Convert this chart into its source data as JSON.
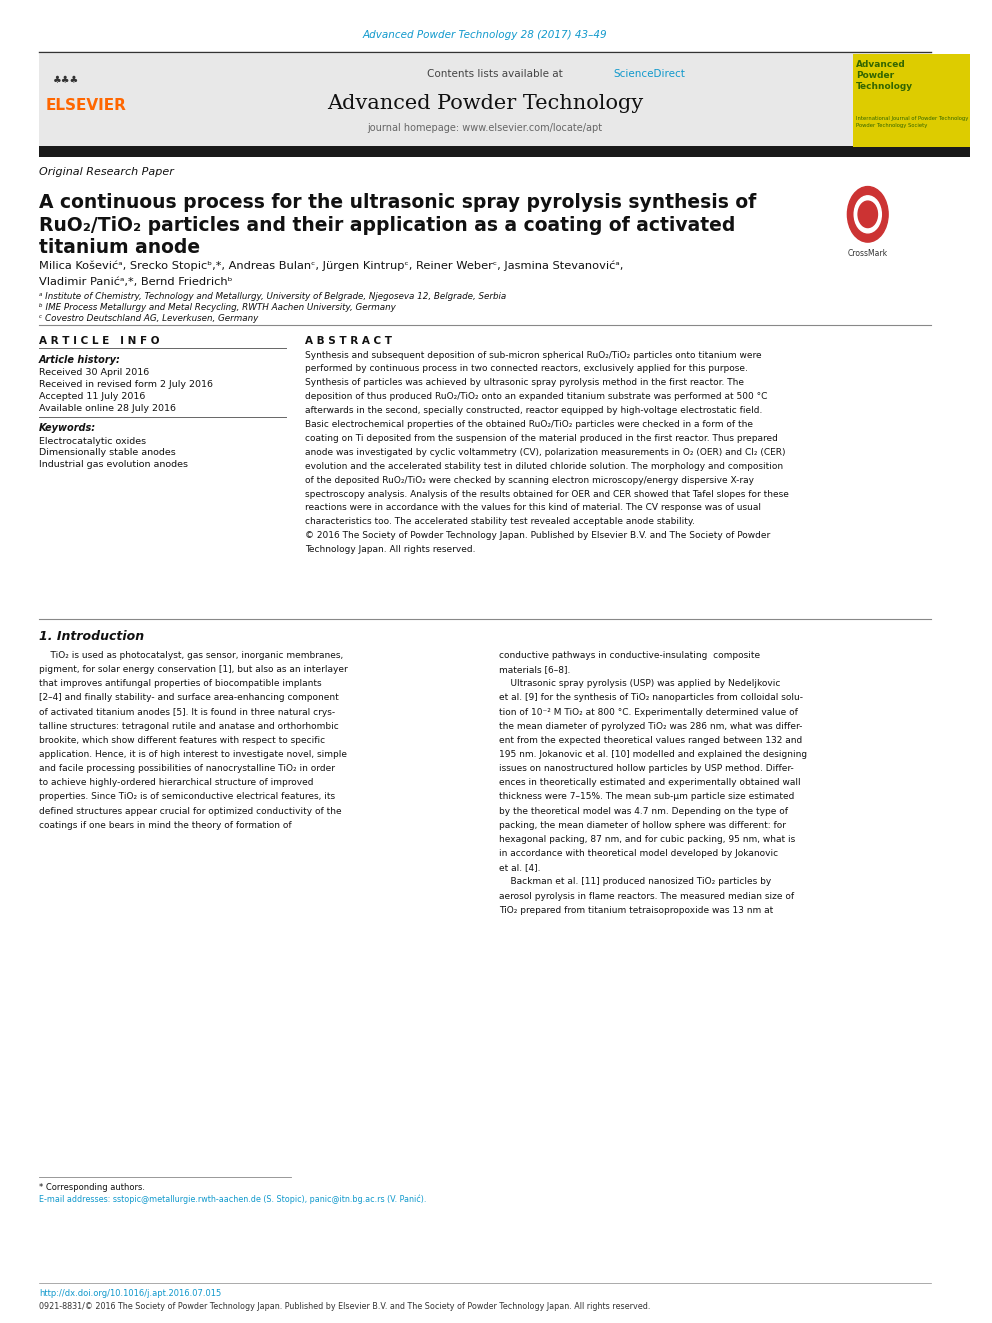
{
  "page_width": 9.92,
  "page_height": 13.23,
  "bg_color": "#ffffff",
  "journal_ref_color": "#1199CC",
  "journal_ref": "Advanced Powder Technology 28 (2017) 43–49",
  "header_bg": "#e8e8e8",
  "contents_text": "Contents lists available at ",
  "sciencedirect_text": "ScienceDirect",
  "sciencedirect_color": "#1199CC",
  "journal_title": "Advanced Powder Technology",
  "journal_homepage": "journal homepage: www.elsevier.com/locate/apt",
  "yellow_box_color": "#DDCC00",
  "yellow_box_text_color": "#336600",
  "thick_bar_color": "#1a1a1a",
  "section_label": "Original Research Paper",
  "paper_title_line1": "A continuous process for the ultrasonic spray pyrolysis synthesis of",
  "paper_title_line2": "RuO₂/TiO₂ particles and their application as a coating of activated",
  "paper_title_line3": "titanium anode",
  "author_line1": "Milica Koševićᵃ, Srecko Stopicᵇ,*, Andreas Bulanᶜ, Jürgen Kintrupᶜ, Reiner Weberᶜ, Jasmina Stevanovićᵃ,",
  "author_line2": "Vladimir Panićᵃ,*, Bernd Friedrichᵇ",
  "affil_a": "ᵃ Institute of Chemistry, Technology and Metallurgy, University of Belgrade, Njegoseva 12, Belgrade, Serbia",
  "affil_b": "ᵇ IME Process Metallurgy and Metal Recycling, RWTH Aachen University, Germany",
  "affil_c": "ᶜ Covestro Deutschland AG, Leverkusen, Germany",
  "article_info_title": "A R T I C L E   I N F O",
  "abstract_title": "A B S T R A C T",
  "article_history_label": "Article history:",
  "received1": "Received 30 April 2016",
  "received2": "Received in revised form 2 July 2016",
  "accepted": "Accepted 11 July 2016",
  "available": "Available online 28 July 2016",
  "keywords_label": "Keywords:",
  "keyword1": "Electrocatalytic oxides",
  "keyword2": "Dimensionally stable anodes",
  "keyword3": "Industrial gas evolution anodes",
  "abstract_lines": [
    "Synthesis and subsequent deposition of sub-micron spherical RuO₂/TiO₂ particles onto titanium were",
    "performed by continuous process in two connected reactors, exclusively applied for this purpose.",
    "Synthesis of particles was achieved by ultrasonic spray pyrolysis method in the first reactor. The",
    "deposition of thus produced RuO₂/TiO₂ onto an expanded titanium substrate was performed at 500 °C",
    "afterwards in the second, specially constructed, reactor equipped by high-voltage electrostatic field.",
    "Basic electrochemical properties of the obtained RuO₂/TiO₂ particles were checked in a form of the",
    "coating on Ti deposited from the suspension of the material produced in the first reactor. Thus prepared",
    "anode was investigated by cyclic voltammetry (CV), polarization measurements in O₂ (OER) and Cl₂ (CER)",
    "evolution and the accelerated stability test in diluted chloride solution. The morphology and composition",
    "of the deposited RuO₂/TiO₂ were checked by scanning electron microscopy/energy dispersive X-ray",
    "spectroscopy analysis. Analysis of the results obtained for OER and CER showed that Tafel slopes for these",
    "reactions were in accordance with the values for this kind of material. The CV response was of usual",
    "characteristics too. The accelerated stability test revealed acceptable anode stability.",
    "© 2016 The Society of Powder Technology Japan. Published by Elsevier B.V. and The Society of Powder",
    "Technology Japan. All rights reserved."
  ],
  "intro_title": "1. Introduction",
  "intro_col1_lines": [
    "    TiO₂ is used as photocatalyst, gas sensor, inorganic membranes,",
    "pigment, for solar energy conservation [1], but also as an interlayer",
    "that improves antifungal properties of biocompatible implants",
    "[2–4] and finally stability- and surface area-enhancing component",
    "of activated titanium anodes [5]. It is found in three natural crys-",
    "talline structures: tetragonal rutile and anatase and orthorhombic",
    "brookite, which show different features with respect to specific",
    "application. Hence, it is of high interest to investigate novel, simple",
    "and facile processing possibilities of nanocrystalline TiO₂ in order",
    "to achieve highly-ordered hierarchical structure of improved",
    "properties. Since TiO₂ is of semiconductive electrical features, its",
    "defined structures appear crucial for optimized conductivity of the",
    "coatings if one bears in mind the theory of formation of"
  ],
  "intro_col2_lines": [
    "conductive pathways in conductive-insulating  composite",
    "materials [6–8].",
    "    Ultrasonic spray pyrolysis (USP) was applied by Nedeljkovic",
    "et al. [9] for the synthesis of TiO₂ nanoparticles from colloidal solu-",
    "tion of 10⁻² M TiO₂ at 800 °C. Experimentally determined value of",
    "the mean diameter of pyrolyzed TiO₂ was 286 nm, what was differ-",
    "ent from the expected theoretical values ranged between 132 and",
    "195 nm. Jokanovic et al. [10] modelled and explained the designing",
    "issues on nanostructured hollow particles by USP method. Differ-",
    "ences in theoretically estimated and experimentally obtained wall",
    "thickness were 7–15%. The mean sub-μm particle size estimated",
    "by the theoretical model was 4.7 nm. Depending on the type of",
    "packing, the mean diameter of hollow sphere was different: for",
    "hexagonal packing, 87 nm, and for cubic packing, 95 nm, what is",
    "in accordance with theoretical model developed by Jokanovic",
    "et al. [4].",
    "    Backman et al. [11] produced nanosized TiO₂ particles by",
    "aerosol pyrolysis in flame reactors. The measured median size of",
    "TiO₂ prepared from titanium tetraisopropoxide was 13 nm at"
  ],
  "footnote_label": "* Corresponding authors.",
  "footnote_emails": "E-mail addresses: sstopic@metallurgie.rwth-aachen.de (S. Stopic), panic@itn.bg.ac.rs (V. Panić).",
  "footer_doi": "http://dx.doi.org/10.1016/j.apt.2016.07.015",
  "footer_text": "0921-8831/© 2016 The Society of Powder Technology Japan. Published by Elsevier B.V. and The Society of Powder Technology Japan. All rights reserved.",
  "elsevier_color": "#FF6600",
  "link_color": "#1199CC",
  "crossmark_red": "#CC3333",
  "crossmark_text": "CrossMark"
}
